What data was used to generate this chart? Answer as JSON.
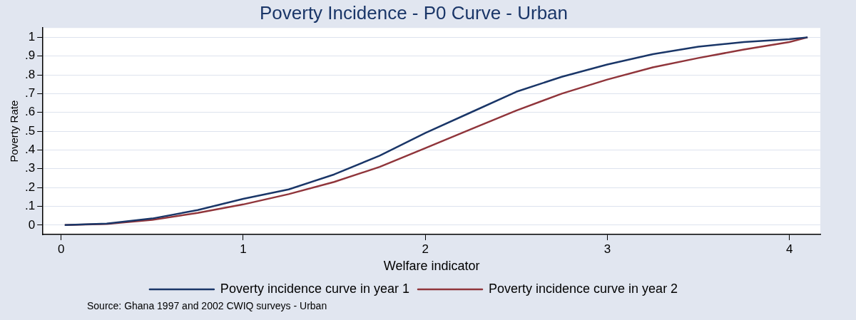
{
  "chart_data": {
    "type": "line",
    "title": "Poverty Incidence - P0 Curve - Urban",
    "xlabel": "Welfare indicator",
    "ylabel": "Poverty Rate",
    "annotations": [
      "Source: Ghana 1997 and 2002 CWIQ surveys - Urban"
    ],
    "xlim": [
      -0.1,
      4.17
    ],
    "xticks": [
      0,
      1,
      2,
      3,
      4
    ],
    "ylim": [
      -0.05,
      1.05
    ],
    "yticks": [
      0,
      {
        "value": 0.1,
        "label": ".1"
      },
      {
        "value": 0.2,
        "label": ".2"
      },
      {
        "value": 0.3,
        "label": ".3"
      },
      {
        "value": 0.4,
        "label": ".4"
      },
      {
        "value": 0.5,
        "label": ".5"
      },
      {
        "value": 0.6,
        "label": ".6"
      },
      {
        "value": 0.7,
        "label": ".7"
      },
      {
        "value": 0.8,
        "label": ".8"
      },
      {
        "value": 0.9,
        "label": ".9"
      },
      1
    ],
    "grid": "y",
    "legend": "bottom",
    "marker": "none",
    "line_style": "solid",
    "x": [
      0.02,
      0.25,
      0.5,
      0.75,
      1,
      1.25,
      1.5,
      1.75,
      2,
      2.25,
      2.5,
      2.75,
      3,
      3.25,
      3.5,
      3.75,
      4,
      4.1
    ],
    "series": [
      {
        "name": "Poverty incidence curve in year 1",
        "color": "#1a3668",
        "values": [
          0,
          0.008,
          0.035,
          0.08,
          0.14,
          0.19,
          0.27,
          0.37,
          0.49,
          0.6,
          0.71,
          0.79,
          0.855,
          0.91,
          0.95,
          0.975,
          0.99,
          1
        ]
      },
      {
        "name": "Poverty incidence curve in year 2",
        "color": "#90353b",
        "values": [
          0,
          0.006,
          0.028,
          0.065,
          0.11,
          0.165,
          0.23,
          0.31,
          0.41,
          0.51,
          0.61,
          0.7,
          0.775,
          0.84,
          0.89,
          0.935,
          0.975,
          1
        ]
      }
    ]
  }
}
